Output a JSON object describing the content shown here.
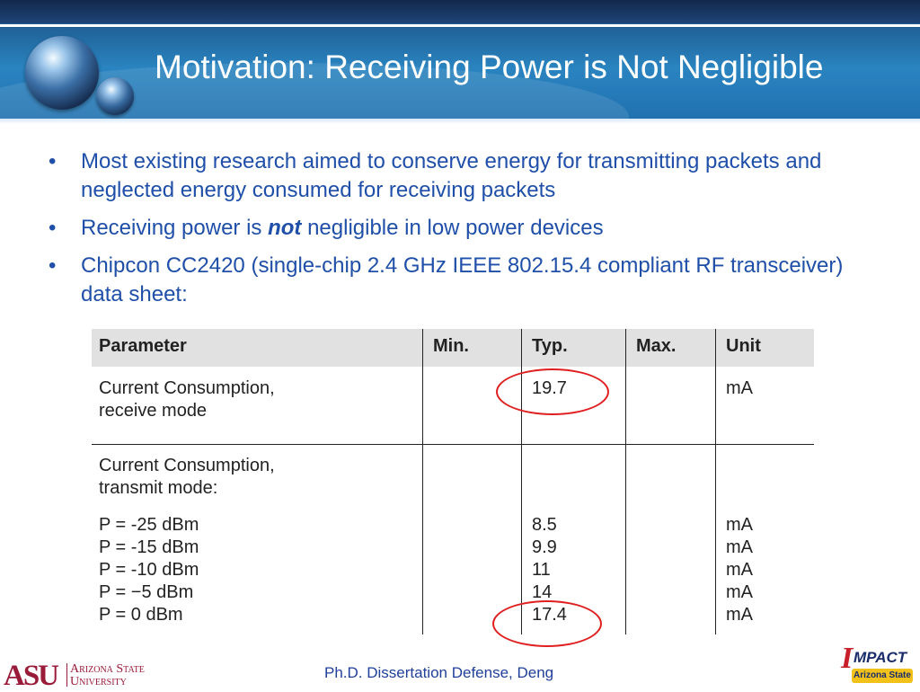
{
  "slide": {
    "title": "Motivation: Receiving Power is Not Negligible",
    "bullet_glyph": "•",
    "bullets": {
      "b1": {
        "text": "Most existing research aimed to conserve energy for transmitting packets and neglected energy consumed for receiving packets"
      },
      "b2": {
        "before": "Receiving power is ",
        "emph": "not",
        "after": " negligible in low power devices"
      },
      "b3": {
        "text": "Chipcon CC2420 (single-chip 2.4 GHz IEEE 802.15.4 compliant RF transceiver) data sheet:"
      }
    },
    "footer": "Ph.D. Dissertation Defense, Deng"
  },
  "table": {
    "headers": {
      "parameter": "Parameter",
      "min": "Min.",
      "typ": "Typ.",
      "max": "Max.",
      "unit": "Unit"
    },
    "rx": {
      "parameter": "Current Consumption,\nreceive mode",
      "typ": "19.7",
      "unit": "mA"
    },
    "tx": {
      "parameter": "Current Consumption,\ntransmit mode:",
      "levels": "P = -25 dBm\nP = -15 dBm\nP = -10 dBm\nP = −5 dBm\nP = 0 dBm",
      "typ": "8.5\n9.9\n11\n14\n17.4",
      "unit": "mA\nmA\nmA\nmA\nmA"
    }
  },
  "logos": {
    "asu_mark": "ASU",
    "asu_name_line1": "Arizona State",
    "asu_name_line2": "University",
    "impact_initial": "I",
    "impact_word": "MPACT",
    "impact_sub": "Arizona State"
  },
  "colors": {
    "title_bar": "#2a84c0",
    "bullet_text": "#1f4fa8",
    "highlight_ring": "#e02020",
    "asu_maroon": "#9a1a3a"
  }
}
